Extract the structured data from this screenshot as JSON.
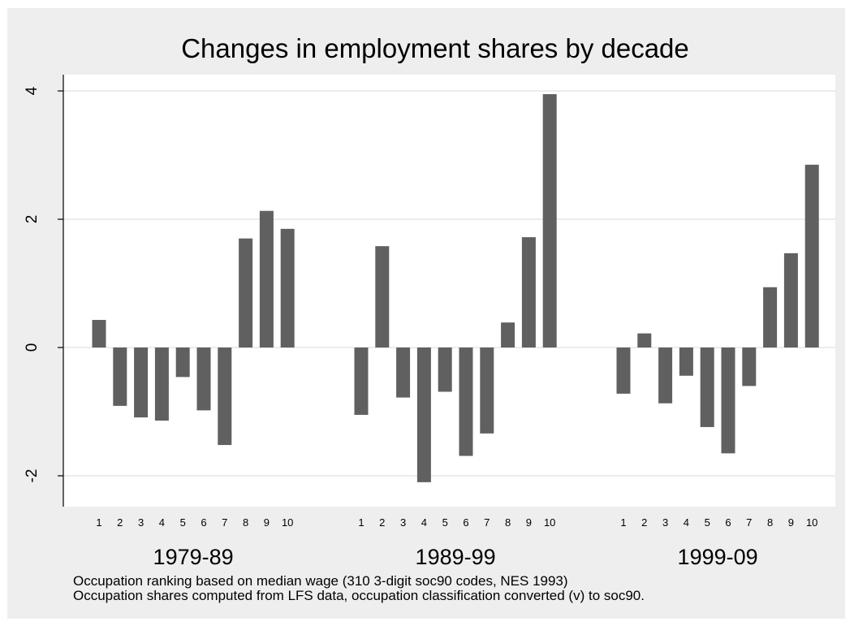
{
  "chart_data": {
    "type": "bar",
    "title": "Changes in employment shares by decade",
    "ylim": [
      -2.5,
      4.5
    ],
    "yticks": [
      4,
      2,
      0,
      -2
    ],
    "ytick_labels": [
      "4",
      "2",
      "0",
      "-2"
    ],
    "grid": true,
    "bar_color": "#606060",
    "panel_color": "#ffffff",
    "background_color": "#eeeeee",
    "gridline_color": "#e6e6e6",
    "categories": [
      "1",
      "2",
      "3",
      "4",
      "5",
      "6",
      "7",
      "8",
      "9",
      "10"
    ],
    "groups": [
      {
        "label": "1979-89",
        "values": [
          0.43,
          -0.91,
          -1.09,
          -1.14,
          -0.46,
          -0.98,
          -1.52,
          1.7,
          2.13,
          1.85
        ]
      },
      {
        "label": "1989-99",
        "values": [
          -1.05,
          1.58,
          -0.78,
          -2.1,
          -0.69,
          -1.69,
          -1.34,
          0.39,
          1.72,
          3.95
        ]
      },
      {
        "label": "1999-09",
        "values": [
          -0.72,
          0.22,
          -0.87,
          -0.44,
          -1.24,
          -1.65,
          -0.6,
          0.94,
          1.47,
          2.85
        ]
      }
    ],
    "notes": [
      "Occupation ranking based on median wage (310 3-digit soc90 codes, NES 1993)",
      "Occupation shares computed from LFS data, occupation classification converted (v)  to soc90."
    ]
  }
}
